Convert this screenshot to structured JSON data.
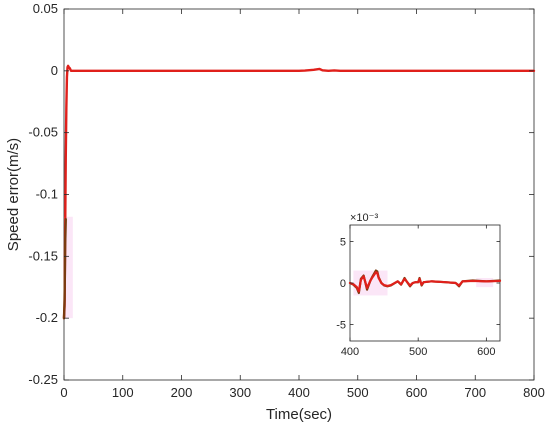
{
  "chart_data": [
    {
      "type": "line",
      "title": "",
      "xlabel": "Time(sec)",
      "ylabel": "Speed error(m/s)",
      "xlim": [
        0,
        800
      ],
      "ylim": [
        -0.25,
        0.05
      ],
      "xticks": [
        0,
        100,
        200,
        300,
        400,
        500,
        600,
        700,
        800
      ],
      "yticks": [
        -0.25,
        -0.2,
        -0.15,
        -0.1,
        -0.05,
        0,
        0.05
      ],
      "ytick_labels": [
        "-0.25",
        "-0.2",
        "-0.15",
        "-0.1",
        "-0.05",
        "0",
        "0.05"
      ],
      "grid": false,
      "legend": "none",
      "series": [
        {
          "color": "#e0201b",
          "points": [
            [
              0,
              -0.2
            ],
            [
              1,
              -0.19
            ],
            [
              2,
              -0.13
            ],
            [
              3,
              -0.07
            ],
            [
              4,
              -0.03
            ],
            [
              5,
              -0.005
            ],
            [
              6,
              0.003
            ],
            [
              7,
              0.004
            ],
            [
              8,
              0.003
            ],
            [
              10,
              0.002
            ],
            [
              12,
              0.0
            ],
            [
              15,
              0.0
            ],
            [
              30,
              0.0
            ],
            [
              100,
              0.0
            ],
            [
              200,
              0.0
            ],
            [
              300,
              0.0
            ],
            [
              400,
              0.0
            ],
            [
              410,
              0.0002
            ],
            [
              425,
              0.0008
            ],
            [
              435,
              0.0015
            ],
            [
              440,
              0.0004
            ],
            [
              450,
              0.0
            ],
            [
              460,
              0.0003
            ],
            [
              470,
              0.0
            ],
            [
              500,
              0.0
            ],
            [
              600,
              0.0
            ],
            [
              700,
              0.0
            ],
            [
              800,
              0.0
            ]
          ]
        },
        {
          "color": "#7a3b10",
          "points": [
            [
              0,
              -0.2
            ],
            [
              1,
              -0.185
            ],
            [
              2,
              -0.14
            ],
            [
              3,
              -0.12
            ]
          ]
        }
      ],
      "highlight_regions": [
        {
          "x": [
            0,
            15
          ],
          "y": [
            -0.2,
            -0.118
          ],
          "color": "#fbe6f7"
        }
      ]
    },
    {
      "type": "line",
      "title": "",
      "inset": true,
      "exponent_label": "×10⁻³",
      "xlim": [
        400,
        620
      ],
      "ylim": [
        -7,
        7
      ],
      "xticks": [
        400,
        500,
        600
      ],
      "yticks": [
        -5,
        0,
        5
      ],
      "grid": false,
      "legend": "none",
      "series": [
        {
          "color": "#7a3b10",
          "points": [
            [
              400,
              0
            ],
            [
              405,
              -0.2
            ],
            [
              410,
              -0.6
            ],
            [
              413,
              -1.2
            ],
            [
              416,
              0.5
            ],
            [
              420,
              0.9
            ],
            [
              425,
              -0.8
            ],
            [
              430,
              0.3
            ],
            [
              433,
              0.8
            ],
            [
              438,
              1.5
            ],
            [
              440,
              1.4
            ],
            [
              442,
              0.7
            ],
            [
              446,
              0.0
            ],
            [
              450,
              -0.3
            ],
            [
              455,
              -0.4
            ],
            [
              460,
              -0.3
            ],
            [
              470,
              0.2
            ],
            [
              475,
              -0.2
            ],
            [
              480,
              0.6
            ],
            [
              483,
              0.2
            ],
            [
              488,
              -0.4
            ],
            [
              492,
              0.0
            ],
            [
              496,
              0.1
            ],
            [
              500,
              0.1
            ],
            [
              502,
              0.6
            ],
            [
              505,
              -0.3
            ],
            [
              508,
              0.1
            ],
            [
              520,
              0.2
            ],
            [
              540,
              0.1
            ],
            [
              555,
              0.0
            ],
            [
              560,
              -0.4
            ],
            [
              565,
              0.2
            ],
            [
              580,
              0.3
            ],
            [
              600,
              0.2
            ],
            [
              620,
              0.3
            ]
          ]
        },
        {
          "color": "#e0201b",
          "points": [
            [
              400,
              0
            ],
            [
              405,
              -0.15
            ],
            [
              410,
              -0.5
            ],
            [
              413,
              -1.0
            ],
            [
              416,
              0.4
            ],
            [
              420,
              0.8
            ],
            [
              425,
              -0.6
            ],
            [
              430,
              0.3
            ],
            [
              433,
              0.7
            ],
            [
              438,
              1.3
            ],
            [
              440,
              1.2
            ],
            [
              442,
              0.6
            ],
            [
              446,
              0.0
            ],
            [
              450,
              -0.25
            ],
            [
              455,
              -0.35
            ],
            [
              460,
              -0.25
            ],
            [
              470,
              0.2
            ],
            [
              475,
              -0.15
            ],
            [
              480,
              0.5
            ],
            [
              483,
              0.2
            ],
            [
              488,
              -0.3
            ],
            [
              492,
              0.0
            ],
            [
              496,
              0.1
            ],
            [
              500,
              0.1
            ],
            [
              502,
              0.5
            ],
            [
              505,
              -0.2
            ],
            [
              508,
              0.1
            ],
            [
              520,
              0.2
            ],
            [
              540,
              0.1
            ],
            [
              555,
              0.0
            ],
            [
              560,
              -0.3
            ],
            [
              565,
              0.2
            ],
            [
              580,
              0.25
            ],
            [
              600,
              0.2
            ],
            [
              620,
              0.25
            ]
          ]
        }
      ],
      "highlight_regions": [
        {
          "x": [
            405,
            455
          ],
          "y": [
            -1.5,
            1.5
          ],
          "color": "#fbe6f7"
        },
        {
          "x": [
            585,
            610
          ],
          "y": [
            -0.5,
            0.6
          ],
          "color": "#fbe6f7"
        }
      ]
    }
  ]
}
